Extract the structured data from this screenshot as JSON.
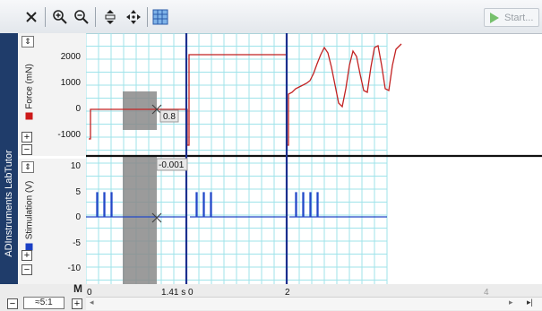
{
  "toolbar": {
    "icons": [
      "close-icon",
      "zoom-in-icon",
      "zoom-out-icon",
      "vertical-autoscale-icon",
      "pan-icon",
      "grid-select-icon"
    ],
    "start_label": "Start..."
  },
  "brand": {
    "label": "ADInstruments LabTutor"
  },
  "channels": [
    {
      "name": "Force (mN)",
      "color": "#cc1a1a",
      "y_ticks": [
        "2000",
        "1000",
        "0",
        "-1000"
      ]
    },
    {
      "name": "Stimulation (V)",
      "color": "#1a3fc4",
      "y_ticks": [
        "10",
        "5",
        "0",
        "-5",
        "-10"
      ]
    }
  ],
  "readouts": {
    "cursor_force": "0.8",
    "cursor_stim": "-0.001"
  },
  "x_axis": {
    "marker_label": "M",
    "ticks": [
      "0",
      "1.41 s 0",
      "2",
      "4"
    ],
    "zoom": "≈5:1"
  },
  "colors": {
    "grid": "#9fe3ea",
    "brand": "#1f3c6a",
    "force": "#cc1a1a",
    "stim": "#1a3fc4"
  }
}
